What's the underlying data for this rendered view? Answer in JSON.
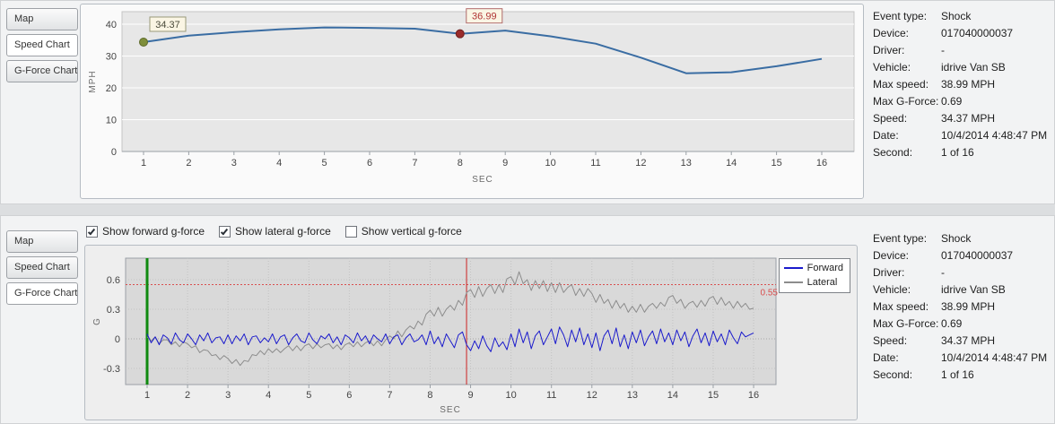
{
  "info": [
    {
      "label": "Event type:",
      "value": "Shock"
    },
    {
      "label": "Device:",
      "value": "017040000037"
    },
    {
      "label": "Driver:",
      "value": "-"
    },
    {
      "label": "Vehicle:",
      "value": "idrive Van SB"
    },
    {
      "label": "Max speed:",
      "value": "38.99 MPH"
    },
    {
      "label": "Max G-Force:",
      "value": "0.69"
    },
    {
      "label": "Speed:",
      "value": "34.37 MPH"
    },
    {
      "label": "Date:",
      "value": "10/4/2014 4:48:47 PM"
    },
    {
      "label": "Second:",
      "value": "1 of 16"
    }
  ],
  "top_panel": {
    "tabs": [
      {
        "label": "Map",
        "selected": false
      },
      {
        "label": "Speed Chart",
        "selected": true
      },
      {
        "label": "G-Force Chart",
        "selected": false
      }
    ]
  },
  "bottom_panel": {
    "tabs": [
      {
        "label": "Map",
        "selected": false
      },
      {
        "label": "Speed Chart",
        "selected": false
      },
      {
        "label": "G-Force Chart",
        "selected": true
      }
    ],
    "checkboxes": [
      {
        "label": "Show forward g-force",
        "checked": true
      },
      {
        "label": "Show lateral g-force",
        "checked": true
      },
      {
        "label": "Show vertical g-force",
        "checked": false
      }
    ]
  },
  "chart_data": [
    {
      "type": "line",
      "title": "Speed Chart",
      "xlabel": "SEC",
      "ylabel": "MPH",
      "ylim": [
        0,
        40
      ],
      "yticks": [
        0,
        10,
        20,
        30,
        40
      ],
      "x": [
        1,
        2,
        3,
        4,
        5,
        6,
        7,
        8,
        9,
        10,
        11,
        12,
        13,
        14,
        15,
        16
      ],
      "values": [
        34.37,
        36.4,
        37.5,
        38.4,
        38.99,
        38.85,
        38.6,
        36.99,
        38.0,
        36.2,
        33.9,
        29.5,
        24.6,
        24.9,
        26.8,
        29.1
      ],
      "line_color": "#3a6da3",
      "box_bg": "#faf5e4",
      "markers": [
        {
          "x": 1,
          "y": 34.37,
          "label": "34.37",
          "fill": "#7e8e3b",
          "stroke": "#5d6a2a",
          "label_color": "#4a4a3a",
          "box_border": "#9a9a7a"
        },
        {
          "x": 8,
          "y": 36.99,
          "label": "36.99",
          "fill": "#9a2b2b",
          "stroke": "#6e1f1f",
          "label_color": "#b03434",
          "box_border": "#b06a6a"
        }
      ]
    },
    {
      "type": "line",
      "title": "G-Force Chart",
      "xlabel": "SEC",
      "ylabel": "G",
      "ylim": [
        -0.46,
        0.82
      ],
      "yticks": [
        -0.3,
        0,
        0.3,
        0.6
      ],
      "xticks": [
        1,
        2,
        3,
        4,
        5,
        6,
        7,
        8,
        9,
        10,
        11,
        12,
        13,
        14,
        15,
        16
      ],
      "threshold": {
        "value": 0.55,
        "label": "0.55",
        "color": "#d94f4f"
      },
      "vlines": [
        {
          "name": "current-second-line",
          "x": 1,
          "color": "#0f8a0f",
          "width": 3
        },
        {
          "name": "event-time-line",
          "x": 8.9,
          "color": "#cc2222",
          "width": 1
        }
      ],
      "series": [
        {
          "name": "Forward",
          "color": "#1a1acc",
          "x_start": 1,
          "x_step": 0.1,
          "y": [
            0.05,
            -0.04,
            0.02,
            -0.06,
            0.04,
            0.01,
            -0.05,
            0.06,
            -0.01,
            -0.04,
            0.05,
            0.0,
            -0.06,
            0.04,
            -0.02,
            0.06,
            -0.04,
            0.01,
            0.02,
            -0.05,
            0.04,
            -0.05,
            0.03,
            -0.02,
            0.05,
            -0.06,
            0.02,
            0.03,
            -0.04,
            0.01,
            -0.03,
            0.05,
            -0.05,
            0.02,
            0.04,
            -0.06,
            0.01,
            0.05,
            -0.02,
            -0.04,
            0.06,
            -0.01,
            -0.05,
            0.03,
            0.0,
            0.05,
            -0.04,
            0.02,
            -0.06,
            0.04,
            0.01,
            -0.04,
            0.06,
            -0.02,
            0.03,
            -0.05,
            0.04,
            0.0,
            -0.03,
            0.05,
            -0.05,
            0.02,
            0.04,
            -0.06,
            0.01,
            0.05,
            -0.03,
            -0.01,
            0.04,
            -0.06,
            0.08,
            -0.05,
            0.02,
            -0.08,
            0.05,
            -0.02,
            -0.09,
            0.04,
            0.07,
            -0.06,
            -0.12,
            -0.02,
            -0.1,
            0.03,
            -0.07,
            -0.13,
            0.01,
            -0.08,
            -0.03,
            -0.11,
            0.05,
            -0.08,
            0.1,
            -0.04,
            0.07,
            -0.1,
            0.03,
            0.08,
            -0.06,
            0.02,
            0.1,
            -0.05,
            0.12,
            0.04,
            -0.08,
            0.09,
            -0.03,
            0.11,
            -0.06,
            0.05,
            -0.09,
            0.06,
            -0.12,
            0.03,
            0.09,
            -0.05,
            0.11,
            -0.08,
            0.04,
            -0.1,
            0.07,
            -0.04,
            0.09,
            -0.07,
            0.02,
            0.08,
            -0.05,
            0.1,
            -0.03,
            0.06,
            -0.06,
            0.09,
            -0.02,
            0.07,
            -0.08,
            0.03,
            0.1,
            -0.04,
            0.06,
            -0.07,
            0.08,
            -0.03,
            0.05,
            -0.06,
            0.09,
            0.01,
            -0.05,
            0.07,
            0.02,
            0.04,
            0.06
          ]
        },
        {
          "name": "Lateral",
          "color": "#8c8c8c",
          "x_start": 1,
          "x_step": 0.1,
          "y": [
            0.02,
            -0.02,
            0.02,
            -0.05,
            -0.01,
            -0.01,
            -0.06,
            -0.03,
            -0.08,
            -0.03,
            -0.05,
            -0.09,
            -0.07,
            -0.14,
            -0.11,
            -0.12,
            -0.17,
            -0.16,
            -0.21,
            -0.17,
            -0.2,
            -0.25,
            -0.21,
            -0.27,
            -0.22,
            -0.23,
            -0.16,
            -0.17,
            -0.12,
            -0.16,
            -0.1,
            -0.14,
            -0.1,
            -0.14,
            -0.1,
            -0.07,
            -0.12,
            -0.07,
            -0.12,
            -0.07,
            -0.05,
            -0.1,
            -0.05,
            -0.09,
            -0.06,
            -0.05,
            -0.1,
            -0.06,
            -0.11,
            -0.06,
            -0.04,
            -0.08,
            -0.03,
            -0.08,
            -0.04,
            -0.02,
            -0.07,
            -0.02,
            -0.07,
            -0.01,
            0.03,
            0.0,
            0.08,
            0.02,
            0.09,
            0.13,
            0.1,
            0.18,
            0.14,
            0.25,
            0.29,
            0.23,
            0.32,
            0.23,
            0.3,
            0.34,
            0.29,
            0.39,
            0.34,
            0.47,
            0.5,
            0.42,
            0.53,
            0.43,
            0.51,
            0.55,
            0.46,
            0.55,
            0.47,
            0.61,
            0.63,
            0.55,
            0.68,
            0.56,
            0.6,
            0.49,
            0.59,
            0.51,
            0.59,
            0.48,
            0.57,
            0.47,
            0.57,
            0.47,
            0.52,
            0.55,
            0.44,
            0.51,
            0.43,
            0.51,
            0.46,
            0.37,
            0.45,
            0.36,
            0.4,
            0.31,
            0.39,
            0.31,
            0.36,
            0.27,
            0.33,
            0.27,
            0.35,
            0.27,
            0.33,
            0.36,
            0.31,
            0.37,
            0.33,
            0.42,
            0.44,
            0.36,
            0.4,
            0.31,
            0.36,
            0.38,
            0.32,
            0.39,
            0.33,
            0.41,
            0.43,
            0.35,
            0.42,
            0.34,
            0.38,
            0.31,
            0.38,
            0.32,
            0.36,
            0.3,
            0.31
          ]
        }
      ],
      "legend": [
        "Forward",
        "Lateral"
      ]
    }
  ]
}
